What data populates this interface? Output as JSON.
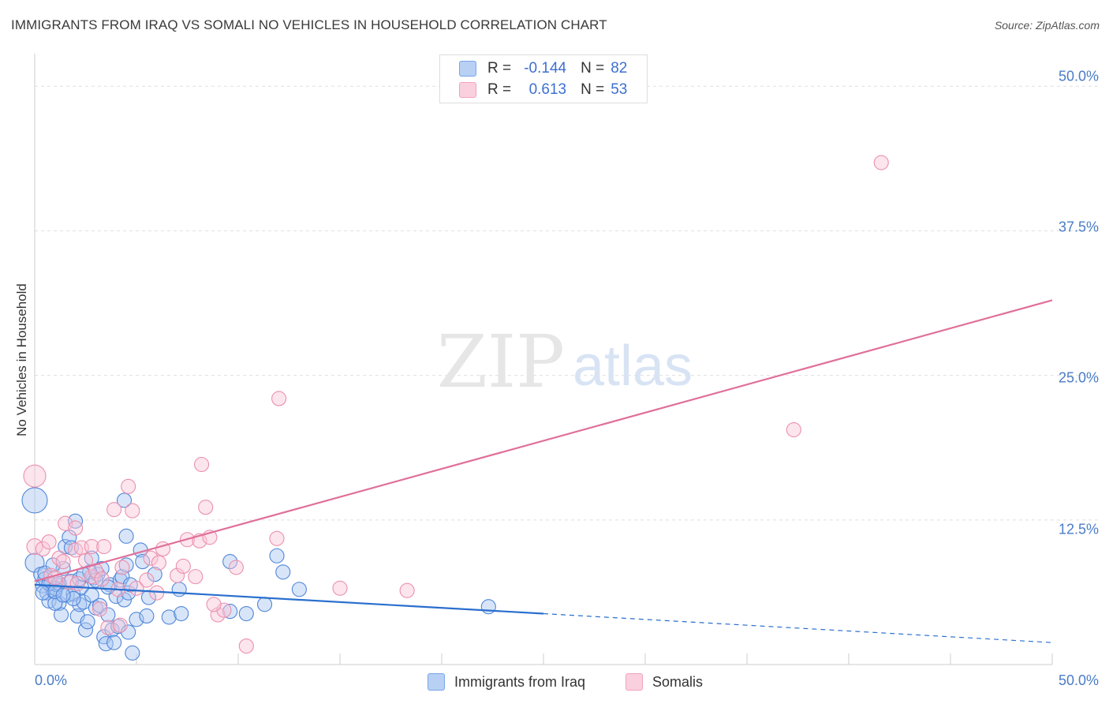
{
  "title": "IMMIGRANTS FROM IRAQ VS SOMALI NO VEHICLES IN HOUSEHOLD CORRELATION CHART",
  "source": "Source: ZipAtlas.com",
  "watermark": {
    "zip": "ZIP",
    "atlas": "atlas"
  },
  "legend": {
    "r_label": "R =",
    "n_label": "N =",
    "rows": [
      {
        "r": "-0.144",
        "n": "82",
        "color": "#7aa6e8"
      },
      {
        "r": "0.613",
        "n": "53",
        "color": "#f0a3bd"
      }
    ]
  },
  "chart_data": {
    "type": "scatter",
    "title": "IMMIGRANTS FROM IRAQ VS SOMALI NO VEHICLES IN HOUSEHOLD CORRELATION CHART",
    "xlabel": "",
    "ylabel": "No Vehicles in Household",
    "xlim": [
      0,
      50
    ],
    "ylim": [
      0,
      52
    ],
    "x_tick_labels": [
      "0.0%",
      "50.0%"
    ],
    "y_ticks": [
      12.5,
      25.0,
      37.5,
      50.0
    ],
    "y_tick_labels": [
      "12.5%",
      "25.0%",
      "37.5%",
      "50.0%"
    ],
    "grid": true,
    "series": [
      {
        "name": "Immigrants from Iraq",
        "color": "#4f86d9",
        "fill": "#a9c6f2",
        "line_color": "#2a6fce",
        "trend": {
          "x0": 0,
          "y0": 6.9,
          "x1": 25,
          "y1": 4.4,
          "dash_to_x": 50,
          "dash_to_y": 1.9
        },
        "points": [
          [
            0.0,
            14.2,
            16
          ],
          [
            0.0,
            8.8,
            12
          ],
          [
            0.3,
            7.8,
            9
          ],
          [
            0.4,
            6.8,
            9
          ],
          [
            0.5,
            7.4,
            9
          ],
          [
            0.6,
            6.2,
            9
          ],
          [
            0.7,
            5.5,
            9
          ],
          [
            0.8,
            7.0,
            9
          ],
          [
            0.9,
            6.4,
            9
          ],
          [
            1.0,
            6.6,
            9
          ],
          [
            1.1,
            6.9,
            9
          ],
          [
            1.2,
            5.3,
            9
          ],
          [
            1.3,
            4.3,
            9
          ],
          [
            1.4,
            8.3,
            9
          ],
          [
            1.5,
            10.2,
            9
          ],
          [
            1.6,
            6.0,
            9
          ],
          [
            1.7,
            11.0,
            9
          ],
          [
            1.8,
            7.2,
            9
          ],
          [
            1.9,
            6.1,
            9
          ],
          [
            2.0,
            12.4,
            9
          ],
          [
            2.1,
            4.2,
            9
          ],
          [
            2.2,
            5.2,
            9
          ],
          [
            2.3,
            6.7,
            9
          ],
          [
            2.4,
            5.4,
            9
          ],
          [
            2.5,
            3.0,
            9
          ],
          [
            2.6,
            3.7,
            9
          ],
          [
            2.8,
            6.0,
            9
          ],
          [
            2.8,
            9.2,
            9
          ],
          [
            2.9,
            7.5,
            9
          ],
          [
            3.0,
            4.9,
            9
          ],
          [
            3.1,
            7.8,
            9
          ],
          [
            3.2,
            5.1,
            9
          ],
          [
            3.3,
            8.3,
            9
          ],
          [
            3.4,
            2.4,
            9
          ],
          [
            3.5,
            1.8,
            9
          ],
          [
            3.6,
            4.3,
            9
          ],
          [
            3.7,
            6.9,
            9
          ],
          [
            3.8,
            3.0,
            9
          ],
          [
            3.9,
            1.9,
            9
          ],
          [
            4.0,
            5.9,
            9
          ],
          [
            4.1,
            3.3,
            9
          ],
          [
            4.2,
            7.3,
            9
          ],
          [
            4.3,
            7.6,
            9
          ],
          [
            4.4,
            5.6,
            9
          ],
          [
            4.5,
            8.6,
            9
          ],
          [
            4.6,
            6.2,
            9
          ],
          [
            4.4,
            14.2,
            9
          ],
          [
            4.5,
            11.1,
            9
          ],
          [
            4.6,
            2.8,
            9
          ],
          [
            4.7,
            6.9,
            9
          ],
          [
            4.8,
            1.0,
            9
          ],
          [
            5.0,
            3.9,
            9
          ],
          [
            5.2,
            9.9,
            9
          ],
          [
            5.3,
            8.9,
            9
          ],
          [
            5.5,
            4.2,
            9
          ],
          [
            5.6,
            5.8,
            9
          ],
          [
            5.9,
            7.8,
            9
          ],
          [
            6.6,
            4.1,
            9
          ],
          [
            7.1,
            6.5,
            9
          ],
          [
            7.2,
            4.4,
            9
          ],
          [
            9.6,
            4.6,
            9
          ],
          [
            9.6,
            8.9,
            9
          ],
          [
            10.4,
            4.4,
            9
          ],
          [
            11.3,
            5.2,
            9
          ],
          [
            11.9,
            9.4,
            9
          ],
          [
            12.2,
            8.0,
            9
          ],
          [
            13.0,
            6.5,
            9
          ],
          [
            22.3,
            5.0,
            9
          ],
          [
            0.7,
            7.0,
            9
          ],
          [
            1.0,
            5.3,
            9
          ],
          [
            1.8,
            10.1,
            9
          ],
          [
            2.2,
            7.4,
            9
          ],
          [
            2.7,
            8.0,
            9
          ],
          [
            3.6,
            6.7,
            9
          ],
          [
            0.5,
            7.9,
            9
          ],
          [
            0.9,
            8.6,
            9
          ],
          [
            1.2,
            7.0,
            9
          ],
          [
            1.9,
            5.7,
            9
          ],
          [
            0.4,
            6.2,
            9
          ],
          [
            1.0,
            6.3,
            9
          ],
          [
            2.4,
            7.8,
            9
          ],
          [
            3.0,
            7.3,
            9
          ],
          [
            1.4,
            6.0,
            9
          ]
        ]
      },
      {
        "name": "Somalis",
        "color": "#eb90ad",
        "fill": "#f8c6d6",
        "line_color": "#e0709a",
        "trend": {
          "x0": 0,
          "y0": 7.2,
          "x1": 50,
          "y1": 31.5
        },
        "points": [
          [
            0.0,
            16.3,
            14
          ],
          [
            0.0,
            10.2,
            10
          ],
          [
            0.4,
            10.0,
            9
          ],
          [
            0.7,
            10.6,
            9
          ],
          [
            0.8,
            7.7,
            9
          ],
          [
            1.0,
            7.5,
            9
          ],
          [
            1.2,
            9.2,
            9
          ],
          [
            1.4,
            8.9,
            9
          ],
          [
            1.5,
            12.2,
            9
          ],
          [
            1.7,
            7.1,
            9
          ],
          [
            2.0,
            9.9,
            9
          ],
          [
            2.0,
            11.8,
            9
          ],
          [
            2.1,
            7.0,
            9
          ],
          [
            2.3,
            10.1,
            9
          ],
          [
            2.5,
            9.0,
            9
          ],
          [
            2.8,
            7.6,
            9
          ],
          [
            2.8,
            10.2,
            9
          ],
          [
            3.0,
            8.1,
            9
          ],
          [
            3.2,
            4.8,
            9
          ],
          [
            3.3,
            7.4,
            9
          ],
          [
            3.4,
            10.2,
            9
          ],
          [
            3.6,
            3.2,
            9
          ],
          [
            3.9,
            13.4,
            9
          ],
          [
            4.1,
            6.5,
            9
          ],
          [
            4.3,
            8.4,
            9
          ],
          [
            4.6,
            15.4,
            9
          ],
          [
            4.8,
            13.3,
            9
          ],
          [
            5.0,
            6.6,
            9
          ],
          [
            5.5,
            7.3,
            9
          ],
          [
            5.7,
            9.2,
            9
          ],
          [
            6.0,
            6.2,
            9
          ],
          [
            6.3,
            10.0,
            9
          ],
          [
            7.0,
            7.7,
            9
          ],
          [
            7.3,
            8.5,
            9
          ],
          [
            7.5,
            10.8,
            9
          ],
          [
            7.9,
            7.6,
            9
          ],
          [
            8.1,
            10.7,
            9
          ],
          [
            8.2,
            17.3,
            9
          ],
          [
            8.4,
            13.6,
            9
          ],
          [
            8.6,
            11.0,
            9
          ],
          [
            9.0,
            4.3,
            9
          ],
          [
            9.3,
            4.7,
            9
          ],
          [
            9.9,
            8.4,
            9
          ],
          [
            10.4,
            1.6,
            9
          ],
          [
            11.9,
            10.9,
            9
          ],
          [
            12.0,
            23.0,
            9
          ],
          [
            15.0,
            6.6,
            9
          ],
          [
            18.3,
            6.4,
            9
          ],
          [
            37.3,
            20.3,
            9
          ],
          [
            41.6,
            43.4,
            9
          ],
          [
            8.8,
            5.2,
            9
          ],
          [
            4.2,
            3.4,
            9
          ],
          [
            6.1,
            8.8,
            9
          ]
        ]
      }
    ]
  }
}
